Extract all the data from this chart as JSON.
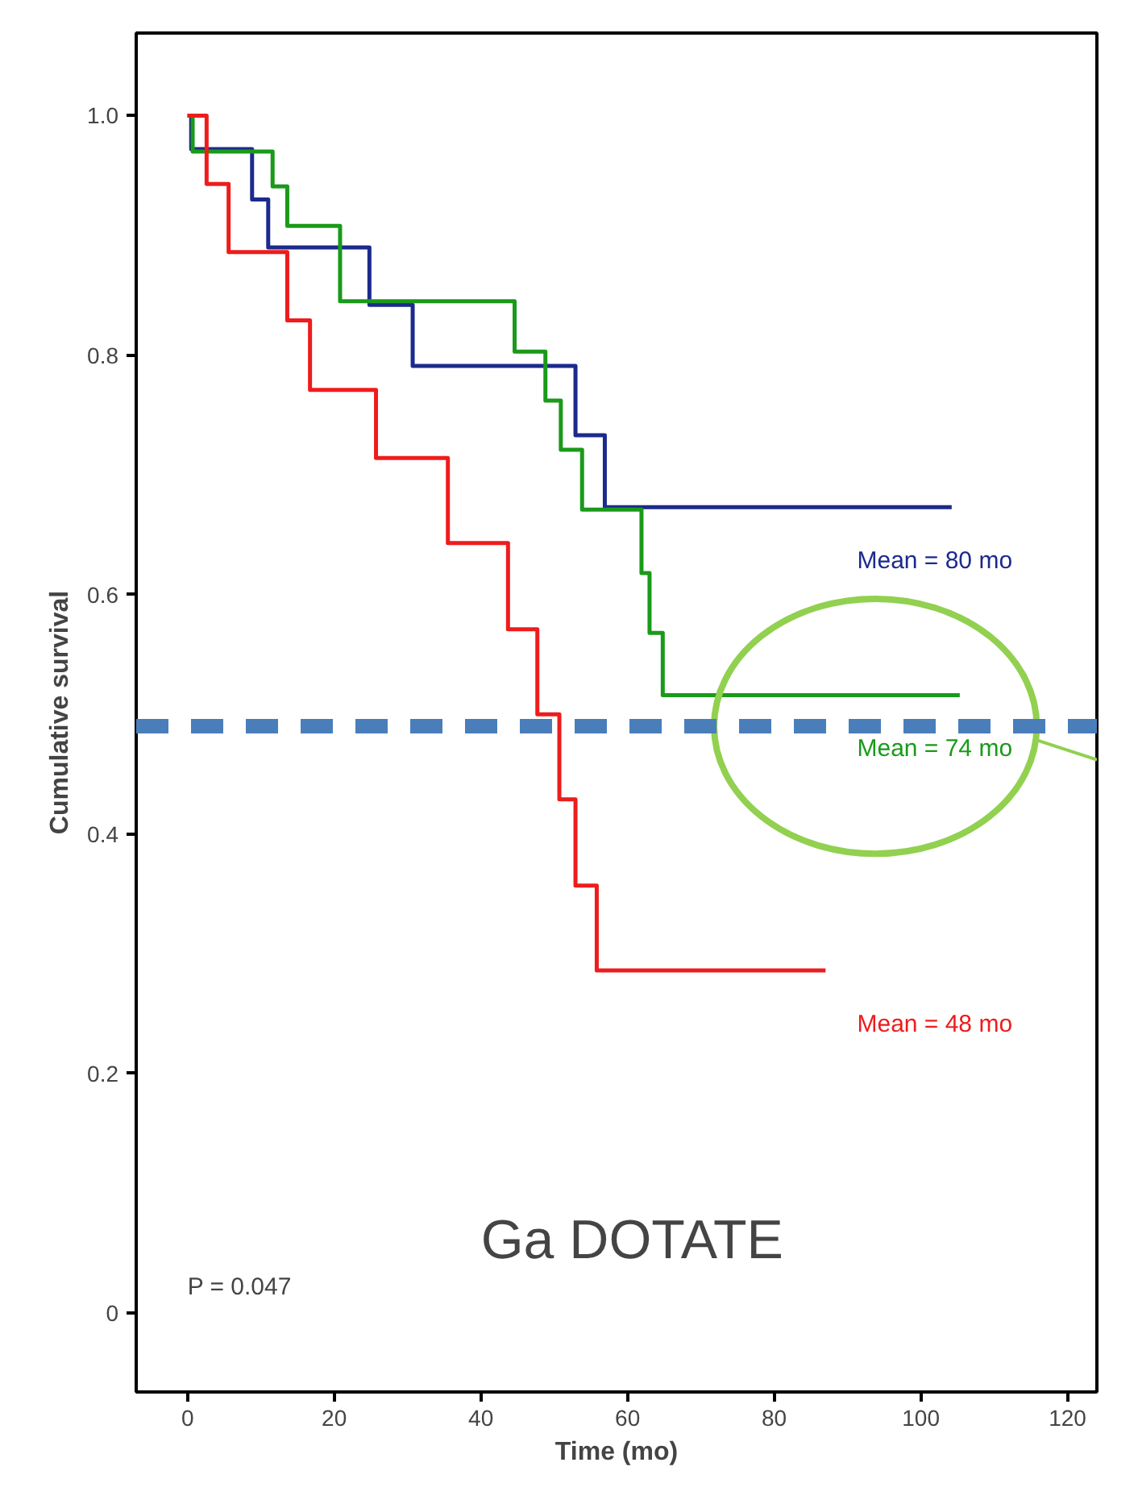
{
  "chart_data": {
    "type": "step",
    "xlabel": "Time (mo)",
    "ylabel": "Cumulative survival",
    "annotations": [
      "P = 0.047",
      "Ga DOTATE"
    ],
    "xlim": [
      -7,
      124
    ],
    "ylim": [
      -0.066,
      1.069
    ],
    "xticks": [
      0,
      20,
      40,
      60,
      80,
      100,
      120
    ],
    "yticks": [
      0,
      0.2,
      0.4,
      0.6,
      0.8,
      {
        "value": 1,
        "label": "1.0"
      }
    ],
    "grid": false,
    "ref_lines": [
      {
        "axis": "y",
        "value": 0.49,
        "color": "#4a7ebb",
        "line_style": "dashed"
      }
    ],
    "series": [
      {
        "name": "Mean = 80 mo",
        "color": "#1c2a8c",
        "x": [
          0,
          0.5,
          8.8,
          11,
          24.8,
          30.7,
          52.9,
          56.9,
          104.2
        ],
        "values": [
          1,
          0.972,
          0.93,
          0.89,
          0.842,
          0.791,
          0.733,
          0.673,
          0.673
        ]
      },
      {
        "name": "Mean = 74 mo",
        "color": "#1a9a1a",
        "x": [
          0,
          0.7,
          11.6,
          13.6,
          20.8,
          44.6,
          48.8,
          50.9,
          53.8,
          61.9,
          63,
          64.8,
          105.3
        ],
        "values": [
          1,
          0.97,
          0.941,
          0.908,
          0.845,
          0.803,
          0.762,
          0.721,
          0.671,
          0.618,
          0.568,
          0.516,
          0.516
        ]
      },
      {
        "name": "Mean = 48 mo",
        "color": "#ee1c1c",
        "x": [
          0,
          2.6,
          5.6,
          13.6,
          16.7,
          25.7,
          35.5,
          43.7,
          47.7,
          50.7,
          52.9,
          55.8,
          87
        ],
        "values": [
          1,
          0.943,
          0.886,
          0.829,
          0.771,
          0.714,
          0.643,
          0.571,
          0.5,
          0.429,
          0.357,
          0.286,
          0.286
        ]
      }
    ]
  }
}
